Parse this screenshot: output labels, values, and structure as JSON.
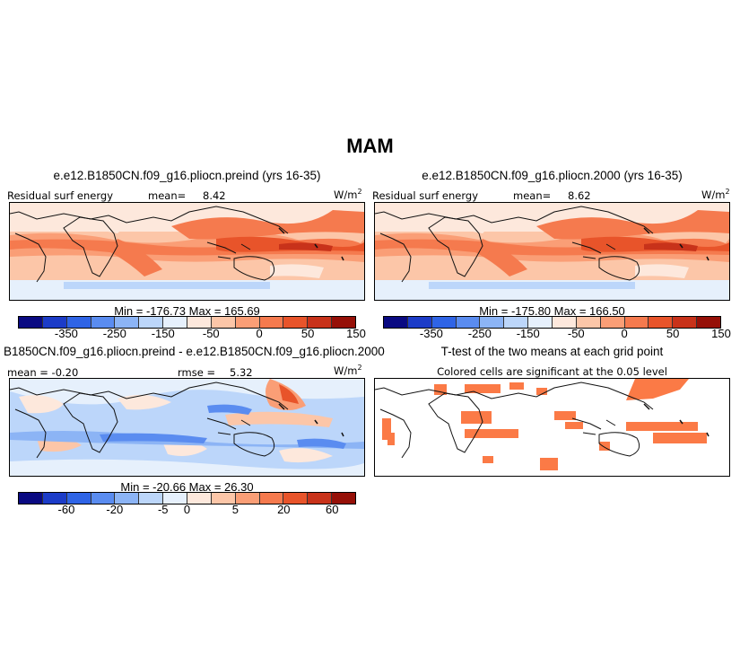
{
  "figure_title": "MAM",
  "panels": {
    "p1": {
      "title": "e.e12.B1850CN.f09_g16.pliocn.preind (yrs 16-35)",
      "left_label": "Residual surf energy",
      "mean_label": "mean=",
      "mean_value": "8.42",
      "units": "W/m",
      "units_sup": "2",
      "minmax": "Min = -176.73  Max = 165.69"
    },
    "p2": {
      "title": "e.e12.B1850CN.f09_g16.pliocn.2000 (yrs 16-35)",
      "left_label": "Residual surf energy",
      "mean_label": "mean=",
      "mean_value": "8.62",
      "units": "W/m",
      "units_sup": "2",
      "minmax": "Min = -175.80  Max = 166.50"
    },
    "p3": {
      "title": "B1850CN.f09_g16.pliocn.preind - e.e12.B1850CN.f09_g16.pliocn.2000",
      "mean_label": "mean = -0.20",
      "rmse_label": "rmse =",
      "rmse_value": "5.32",
      "units": "W/m",
      "units_sup": "2",
      "minmax": "Min = -20.66  Max = 26.30"
    },
    "p4": {
      "title": "T-test of the two means at each grid point",
      "subtitle": "Colored cells are significant at the 0.05 level"
    }
  },
  "colorbar_abs": {
    "ticks": [
      "-350",
      "-250",
      "-150",
      "-50",
      "0",
      "50",
      "150"
    ]
  },
  "colorbar_diff": {
    "ticks": [
      "-60",
      "-20",
      "-5",
      "0",
      "5",
      "20",
      "60"
    ]
  },
  "colors": {
    "scale": [
      "#0a0a82",
      "#1c3cc8",
      "#2f64e6",
      "#5a8cf0",
      "#8cb4f5",
      "#bcd6fa",
      "#e6f0fc",
      "#fde8dc",
      "#fcc6a8",
      "#fa9e76",
      "#f57a4e",
      "#e8542a",
      "#c8321a",
      "#961008"
    ],
    "sig": "#fb7a46"
  }
}
